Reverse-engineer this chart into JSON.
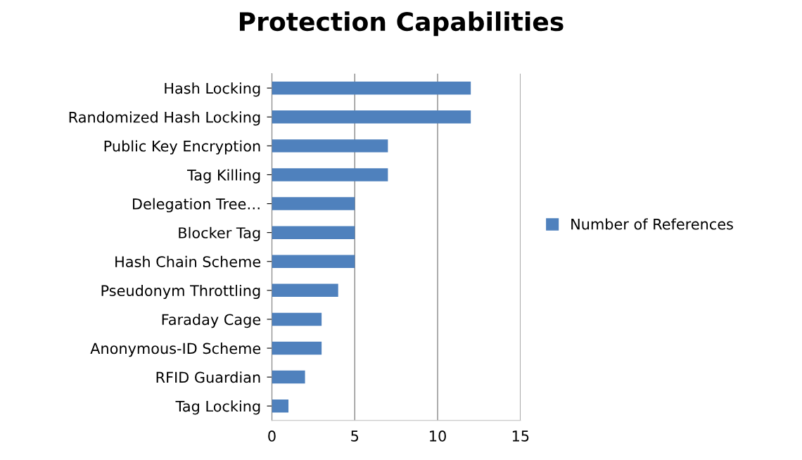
{
  "chart_data": {
    "type": "bar",
    "orientation": "horizontal",
    "title": "Protection Capabilities",
    "categories": [
      "Hash Locking",
      "Randomized Hash Locking",
      "Public Key Encryption",
      "Tag Killing",
      "Delegation Tree…",
      "Blocker Tag",
      "Hash Chain Scheme",
      "Pseudonym Throttling",
      "Faraday Cage",
      "Anonymous-ID Scheme",
      "RFID Guardian",
      "Tag Locking"
    ],
    "series": [
      {
        "name": "Number of References",
        "color": "#4f81bd",
        "values": [
          12,
          12,
          7,
          7,
          5,
          5,
          5,
          4,
          3,
          3,
          2,
          1
        ]
      }
    ],
    "xlim": [
      0,
      15
    ],
    "xticks": [
      0,
      5,
      10,
      15
    ],
    "grid": "x",
    "legend": "right"
  }
}
